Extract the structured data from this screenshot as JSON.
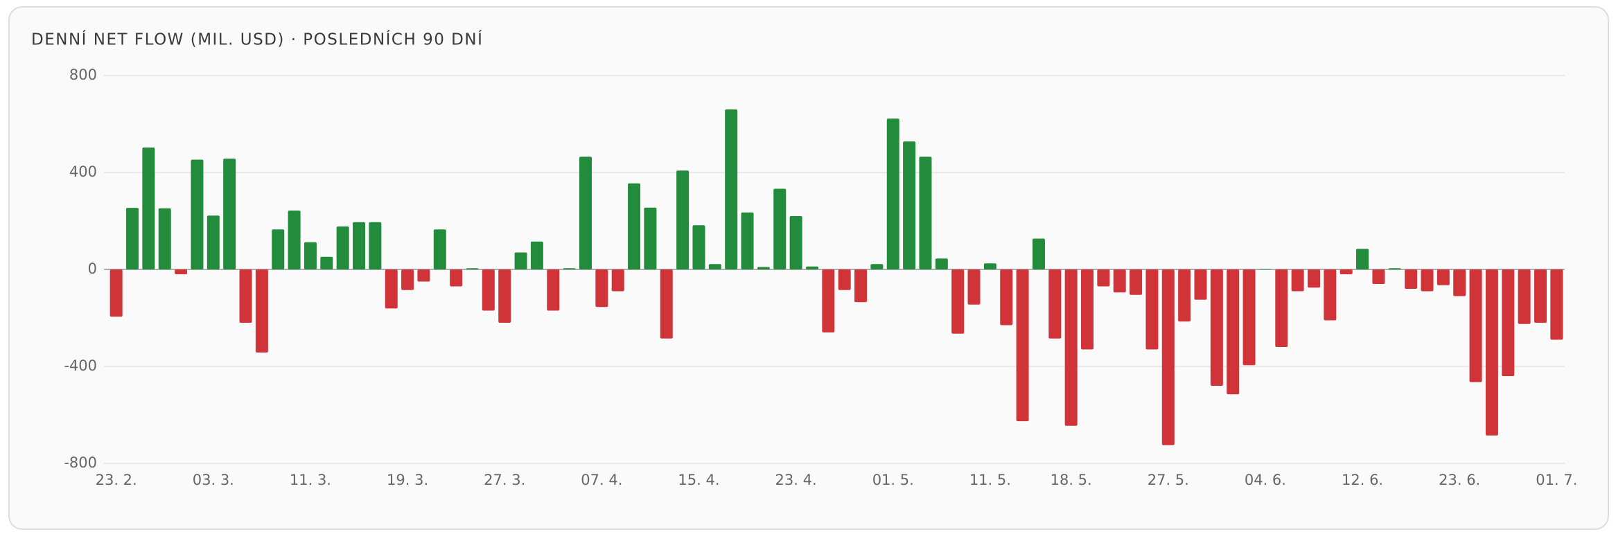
{
  "chart_data": {
    "type": "bar",
    "title": "DENNÍ NET FLOW (MIL. USD) · POSLEDNÍCH 90 DNÍ",
    "categories": [
      "23. 2.",
      null,
      null,
      null,
      null,
      null,
      "03. 3.",
      null,
      null,
      null,
      null,
      null,
      "11. 3.",
      null,
      null,
      null,
      null,
      null,
      "19. 3.",
      null,
      null,
      null,
      null,
      null,
      "27. 3.",
      null,
      null,
      null,
      null,
      null,
      "07. 4.",
      null,
      null,
      null,
      null,
      null,
      "15. 4.",
      null,
      null,
      null,
      null,
      null,
      "23. 4.",
      null,
      null,
      null,
      null,
      null,
      "01. 5.",
      null,
      null,
      null,
      null,
      null,
      "11. 5.",
      null,
      null,
      null,
      null,
      "18. 5.",
      null,
      null,
      null,
      null,
      null,
      "27. 5.",
      null,
      null,
      null,
      null,
      null,
      "04. 6.",
      null,
      null,
      null,
      null,
      null,
      "12. 6.",
      null,
      null,
      null,
      null,
      null,
      "23. 6.",
      null,
      null,
      null,
      null,
      null,
      "01. 7."
    ],
    "values": [
      -195,
      254,
      503,
      252,
      -20,
      453,
      222,
      457,
      -220,
      -343,
      165,
      243,
      112,
      52,
      177,
      195,
      195,
      -161,
      -85,
      -50,
      165,
      -70,
      5,
      -170,
      -220,
      70,
      115,
      -170,
      5,
      465,
      -155,
      -90,
      355,
      255,
      -285,
      408,
      182,
      22,
      660,
      235,
      10,
      333,
      220,
      12,
      -260,
      -85,
      -135,
      22,
      622,
      528,
      465,
      45,
      -265,
      -145,
      25,
      -230,
      -626,
      127,
      -285,
      -645,
      -330,
      -70,
      -95,
      -105,
      -330,
      -725,
      -215,
      -125,
      -480,
      -515,
      -395,
      2,
      -320,
      -90,
      -75,
      -210,
      -20,
      85,
      -60,
      5,
      -80,
      -90,
      -65,
      -110,
      -465,
      -685,
      -440,
      -225,
      -220,
      -290
    ],
    "positive_color": "#238b3c",
    "negative_color": "#d13438",
    "ylim": [
      -800,
      800
    ],
    "yticks": [
      -800,
      -400,
      0,
      400,
      800
    ],
    "grid": true
  }
}
